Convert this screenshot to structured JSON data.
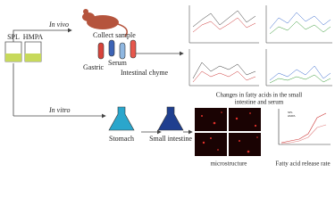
{
  "sources": {
    "spl": "SPL",
    "hmpa": "HMPA"
  },
  "in_vivo": {
    "label": "In vivo",
    "step": "Collect sample",
    "samples": [
      "Gastric",
      "Serum",
      "Intestinal chyme"
    ],
    "result": [
      "Changes in fatty acids in the small",
      "intestine and serum"
    ]
  },
  "in_vitro": {
    "label": "In vitro",
    "stages": [
      "Stomach",
      "Small intestine"
    ],
    "results": [
      "microstructure",
      "Fatty acid release rate"
    ]
  },
  "release_chart": {
    "legend": [
      "SPL",
      "HMPA"
    ]
  }
}
